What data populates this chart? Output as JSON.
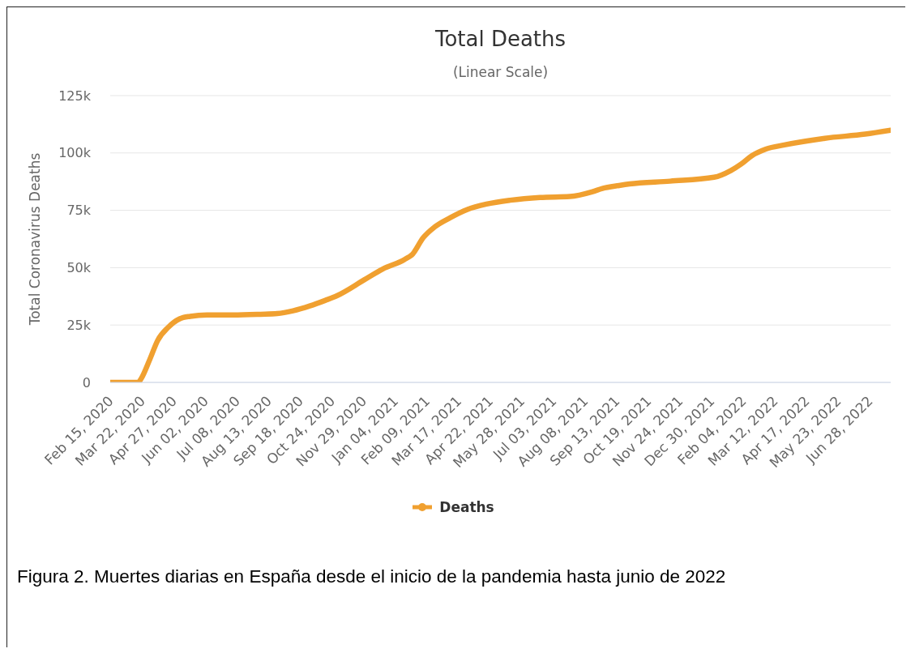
{
  "chart_data": {
    "type": "line",
    "title": "Total Deaths",
    "subtitle": "(Linear Scale)",
    "ylabel": "Total Coronavirus Deaths",
    "x": [
      "2020-02-15",
      "2020-03-18",
      "2020-03-21",
      "2020-03-31",
      "2020-04-09",
      "2020-04-21",
      "2020-05-04",
      "2020-05-16",
      "2020-06-04",
      "2020-07-04",
      "2020-08-04",
      "2020-08-23",
      "2020-09-10",
      "2020-09-29",
      "2020-10-17",
      "2020-10-30",
      "2020-11-30",
      "2020-12-21",
      "2021-01-15",
      "2021-01-24",
      "2021-02-05",
      "2021-02-18",
      "2021-03-08",
      "2021-03-27",
      "2021-04-18",
      "2021-05-15",
      "2021-06-18",
      "2021-07-22",
      "2021-08-16",
      "2021-08-28",
      "2021-09-16",
      "2021-09-28",
      "2021-11-13",
      "2022-01-02",
      "2022-01-21",
      "2022-02-02",
      "2022-02-14",
      "2022-03-02",
      "2022-03-23",
      "2022-05-08",
      "2022-06-23",
      "2022-07-22"
    ],
    "series": [
      {
        "name": "Deaths",
        "color": "#f0a030",
        "values": [
          0,
          0,
          1500,
          10000,
          18300,
          24000,
          27700,
          28800,
          29400,
          29400,
          29700,
          30000,
          31200,
          33300,
          35800,
          37800,
          44700,
          49400,
          53600,
          55900,
          63000,
          67700,
          71800,
          75300,
          77700,
          79400,
          80600,
          81000,
          83000,
          84500,
          85800,
          86500,
          87700,
          89400,
          92300,
          95200,
          98800,
          101700,
          103500,
          106400,
          108200,
          109900
        ]
      }
    ],
    "xlim": [
      "2020-02-15",
      "2022-07-22"
    ],
    "xticks": [
      {
        "value": "2020-02-15",
        "label": "Feb 15, 2020"
      },
      {
        "value": "2020-03-22",
        "label": "Mar 22, 2020"
      },
      {
        "value": "2020-04-27",
        "label": "Apr 27, 2020"
      },
      {
        "value": "2020-06-02",
        "label": "Jun 02, 2020"
      },
      {
        "value": "2020-07-08",
        "label": "Jul 08, 2020"
      },
      {
        "value": "2020-08-13",
        "label": "Aug 13, 2020"
      },
      {
        "value": "2020-09-18",
        "label": "Sep 18, 2020"
      },
      {
        "value": "2020-10-24",
        "label": "Oct 24, 2020"
      },
      {
        "value": "2020-11-29",
        "label": "Nov 29, 2020"
      },
      {
        "value": "2021-01-04",
        "label": "Jan 04, 2021"
      },
      {
        "value": "2021-02-09",
        "label": "Feb 09, 2021"
      },
      {
        "value": "2021-03-17",
        "label": "Mar 17, 2021"
      },
      {
        "value": "2021-04-22",
        "label": "Apr 22, 2021"
      },
      {
        "value": "2021-05-28",
        "label": "May 28, 2021"
      },
      {
        "value": "2021-07-03",
        "label": "Jul 03, 2021"
      },
      {
        "value": "2021-08-08",
        "label": "Aug 08, 2021"
      },
      {
        "value": "2021-09-13",
        "label": "Sep 13, 2021"
      },
      {
        "value": "2021-10-19",
        "label": "Oct 19, 2021"
      },
      {
        "value": "2021-11-24",
        "label": "Nov 24, 2021"
      },
      {
        "value": "2021-12-30",
        "label": "Dec 30, 2021"
      },
      {
        "value": "2022-02-04",
        "label": "Feb 04, 2022"
      },
      {
        "value": "2022-03-12",
        "label": "Mar 12, 2022"
      },
      {
        "value": "2022-04-17",
        "label": "Apr 17, 2022"
      },
      {
        "value": "2022-05-23",
        "label": "May 23, 2022"
      },
      {
        "value": "2022-06-28",
        "label": "Jun 28, 2022"
      }
    ],
    "ylim": [
      0,
      125000
    ],
    "yticks": [
      0,
      {
        "value": 25000,
        "label": "25k"
      },
      {
        "value": 50000,
        "label": "50k"
      },
      {
        "value": 75000,
        "label": "75k"
      },
      {
        "value": 100000,
        "label": "100k"
      },
      {
        "value": 125000,
        "label": "125k"
      }
    ],
    "grid": "y",
    "legend": "bottom",
    "line_style": "solid",
    "annotations": [
      "Figura 2. Muertes diarias en España desde el inicio de la pandemia hasta junio de 2022"
    ]
  }
}
